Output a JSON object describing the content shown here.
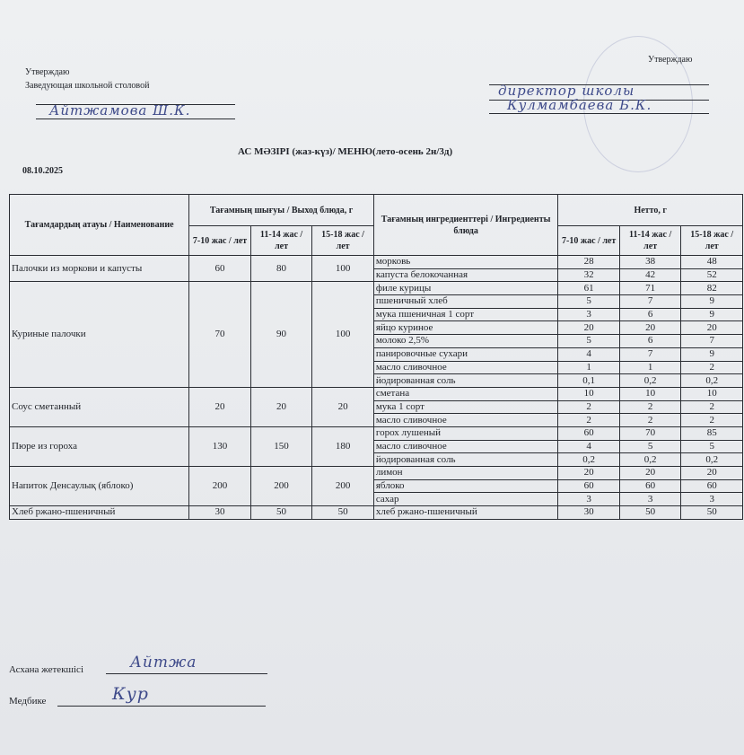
{
  "approval_left": {
    "label": "Утверждаю",
    "position": "Заведующая школьной столовой",
    "signature": "Айтжамова Ш.К."
  },
  "approval_right": {
    "label": "Утверждаю",
    "signature_line1": "директор школы",
    "signature_line2": "Кулмамбаева Б.К."
  },
  "title": "АС  МӘЗІРІ (жаз-күз)/ МЕНЮ(лето-осень 2н/3д)",
  "date": "08.10.2025",
  "table": {
    "headers": {
      "name": "Тағамдардың атауы / Наименование",
      "output": "Тағамның шығуы / Выход блюда, г",
      "ingredients": "Тағамның ингредиенттері / Ингредиенты блюда",
      "netto": "Нетто, г",
      "age_groups": [
        "7-10 жас / лет",
        "11-14 жас / лет",
        "15-18 жас / лет"
      ]
    },
    "dishes": [
      {
        "name": "Палочки из моркови и капусты",
        "output": [
          "60",
          "80",
          "100"
        ],
        "ingredients": [
          {
            "name": "морковь",
            "netto": [
              "28",
              "38",
              "48"
            ]
          },
          {
            "name": "капуста белокочанная",
            "netto": [
              "32",
              "42",
              "52"
            ]
          }
        ]
      },
      {
        "name": "Куриные палочки",
        "output": [
          "70",
          "90",
          "100"
        ],
        "ingredients": [
          {
            "name": "филе курицы",
            "netto": [
              "61",
              "71",
              "82"
            ]
          },
          {
            "name": "пшеничный хлеб",
            "netto": [
              "5",
              "7",
              "9"
            ]
          },
          {
            "name": "мука пшеничная 1 сорт",
            "netto": [
              "3",
              "6",
              "9"
            ]
          },
          {
            "name": "яйцо куриное",
            "netto": [
              "20",
              "20",
              "20"
            ]
          },
          {
            "name": "молоко 2,5%",
            "netto": [
              "5",
              "6",
              "7"
            ]
          },
          {
            "name": "панировочные сухари",
            "netto": [
              "4",
              "7",
              "9"
            ]
          },
          {
            "name": "масло сливочное",
            "netto": [
              "1",
              "1",
              "2"
            ]
          },
          {
            "name": "йодированная соль",
            "netto": [
              "0,1",
              "0,2",
              "0,2"
            ]
          }
        ]
      },
      {
        "name": "Соус сметанный",
        "output": [
          "20",
          "20",
          "20"
        ],
        "ingredients": [
          {
            "name": "сметана",
            "netto": [
              "10",
              "10",
              "10"
            ]
          },
          {
            "name": "мука 1 сорт",
            "netto": [
              "2",
              "2",
              "2"
            ]
          },
          {
            "name": "масло сливочное",
            "netto": [
              "2",
              "2",
              "2"
            ]
          }
        ]
      },
      {
        "name": "Пюре из гороха",
        "output": [
          "130",
          "150",
          "180"
        ],
        "ingredients": [
          {
            "name": "горох лушеный",
            "netto": [
              "60",
              "70",
              "85"
            ]
          },
          {
            "name": "масло сливочное",
            "netto": [
              "4",
              "5",
              "5"
            ]
          },
          {
            "name": "йодированная соль",
            "netto": [
              "0,2",
              "0,2",
              "0,2"
            ]
          }
        ]
      },
      {
        "name": "Напиток Денсаулық (яблоко)",
        "output": [
          "200",
          "200",
          "200"
        ],
        "ingredients": [
          {
            "name": "лимон",
            "netto": [
              "20",
              "20",
              "20"
            ]
          },
          {
            "name": "яблоко",
            "netto": [
              "60",
              "60",
              "60"
            ]
          },
          {
            "name": "сахар",
            "netto": [
              "3",
              "3",
              "3"
            ]
          }
        ]
      },
      {
        "name": "Хлеб ржано-пшеничный",
        "output": [
          "30",
          "50",
          "50"
        ],
        "ingredients": [
          {
            "name": "хлеб ржано-пшеничный",
            "netto": [
              "30",
              "50",
              "50"
            ]
          }
        ]
      }
    ]
  },
  "footer": {
    "cook_label": "Асхана жетекшісі",
    "cook_signature": "Айтжа",
    "nurse_label": "Медбике",
    "nurse_signature": "Кур"
  }
}
